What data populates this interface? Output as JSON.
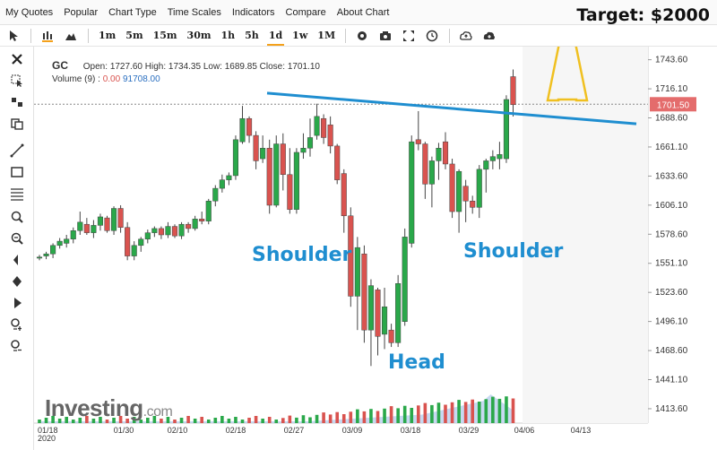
{
  "menu": {
    "items": [
      "My Quotes",
      "Popular",
      "Chart Type",
      "Time Scales",
      "Indicators",
      "Compare",
      "About Chart"
    ]
  },
  "target_label": "Target: $2000",
  "toolbar": {
    "timeframes": [
      "1m",
      "5m",
      "15m",
      "30m",
      "1h",
      "5h",
      "1d",
      "1w",
      "1M"
    ],
    "active_timeframe": "1d"
  },
  "legend": {
    "symbol": "GC",
    "open_label": "Open:",
    "open": "1727.60",
    "high_label": "High:",
    "high": "1734.35",
    "low_label": "Low:",
    "low": "1689.85",
    "close_label": "Close:",
    "close": "1701.10",
    "volume_label": "Volume",
    "volume_period": "(9)",
    "volume_a": "0.00",
    "volume_b": "91708.00"
  },
  "annotations": {
    "left_shoulder": "Shoulder",
    "head": "Head",
    "right_shoulder": "Shoulder"
  },
  "watermark": {
    "brand": "Investing",
    "suffix": ".com"
  },
  "colors": {
    "up": "#2aa84a",
    "down": "#d9534f",
    "neckline": "#1f8ed0",
    "arrow": "#f0c020",
    "price_tag": "#e46c6c",
    "volume_area": "#b9cfee"
  },
  "chart_data": {
    "type": "candlestick",
    "symbol": "GC",
    "ylim": [
      1400,
      1756
    ],
    "y_ticks": [
      1413.6,
      1441.1,
      1468.6,
      1496.1,
      1523.6,
      1551.1,
      1578.6,
      1606.1,
      1633.6,
      1661.1,
      1688.6,
      1716.1,
      1743.6
    ],
    "x_tick_labels": [
      "01/18\n2020",
      "01/30",
      "02/10",
      "02/18",
      "02/27",
      "03/09",
      "03/18",
      "03/29",
      "04/06",
      "04/13"
    ],
    "last_price": 1701.5,
    "candles": [
      {
        "o": 1556,
        "h": 1559,
        "l": 1554,
        "c": 1557
      },
      {
        "o": 1558,
        "h": 1562,
        "l": 1555,
        "c": 1560
      },
      {
        "o": 1560,
        "h": 1570,
        "l": 1556,
        "c": 1568
      },
      {
        "o": 1568,
        "h": 1575,
        "l": 1565,
        "c": 1572
      },
      {
        "o": 1570,
        "h": 1578,
        "l": 1566,
        "c": 1574
      },
      {
        "o": 1574,
        "h": 1585,
        "l": 1570,
        "c": 1582
      },
      {
        "o": 1582,
        "h": 1600,
        "l": 1578,
        "c": 1590
      },
      {
        "o": 1588,
        "h": 1594,
        "l": 1578,
        "c": 1580
      },
      {
        "o": 1580,
        "h": 1592,
        "l": 1575,
        "c": 1587
      },
      {
        "o": 1587,
        "h": 1598,
        "l": 1582,
        "c": 1595
      },
      {
        "o": 1594,
        "h": 1596,
        "l": 1580,
        "c": 1582
      },
      {
        "o": 1582,
        "h": 1605,
        "l": 1578,
        "c": 1603
      },
      {
        "o": 1603,
        "h": 1606,
        "l": 1580,
        "c": 1585
      },
      {
        "o": 1585,
        "h": 1590,
        "l": 1554,
        "c": 1558
      },
      {
        "o": 1558,
        "h": 1572,
        "l": 1554,
        "c": 1568
      },
      {
        "o": 1568,
        "h": 1576,
        "l": 1562,
        "c": 1574
      },
      {
        "o": 1574,
        "h": 1583,
        "l": 1570,
        "c": 1580
      },
      {
        "o": 1580,
        "h": 1586,
        "l": 1576,
        "c": 1584
      },
      {
        "o": 1584,
        "h": 1586,
        "l": 1574,
        "c": 1578
      },
      {
        "o": 1578,
        "h": 1590,
        "l": 1575,
        "c": 1586
      },
      {
        "o": 1586,
        "h": 1588,
        "l": 1575,
        "c": 1577
      },
      {
        "o": 1577,
        "h": 1590,
        "l": 1574,
        "c": 1588
      },
      {
        "o": 1588,
        "h": 1590,
        "l": 1580,
        "c": 1584
      },
      {
        "o": 1584,
        "h": 1596,
        "l": 1582,
        "c": 1593
      },
      {
        "o": 1593,
        "h": 1600,
        "l": 1588,
        "c": 1591
      },
      {
        "o": 1591,
        "h": 1612,
        "l": 1588,
        "c": 1610
      },
      {
        "o": 1610,
        "h": 1625,
        "l": 1605,
        "c": 1622
      },
      {
        "o": 1622,
        "h": 1635,
        "l": 1618,
        "c": 1630
      },
      {
        "o": 1630,
        "h": 1637,
        "l": 1625,
        "c": 1634
      },
      {
        "o": 1634,
        "h": 1672,
        "l": 1630,
        "c": 1668
      },
      {
        "o": 1666,
        "h": 1700,
        "l": 1664,
        "c": 1688
      },
      {
        "o": 1688,
        "h": 1690,
        "l": 1665,
        "c": 1672
      },
      {
        "o": 1672,
        "h": 1676,
        "l": 1640,
        "c": 1648
      },
      {
        "o": 1650,
        "h": 1672,
        "l": 1646,
        "c": 1660
      },
      {
        "o": 1660,
        "h": 1668,
        "l": 1598,
        "c": 1606
      },
      {
        "o": 1606,
        "h": 1672,
        "l": 1604,
        "c": 1664
      },
      {
        "o": 1664,
        "h": 1674,
        "l": 1620,
        "c": 1635
      },
      {
        "o": 1635,
        "h": 1660,
        "l": 1598,
        "c": 1602
      },
      {
        "o": 1602,
        "h": 1660,
        "l": 1598,
        "c": 1656
      },
      {
        "o": 1656,
        "h": 1674,
        "l": 1650,
        "c": 1660
      },
      {
        "o": 1660,
        "h": 1688,
        "l": 1652,
        "c": 1670
      },
      {
        "o": 1672,
        "h": 1702,
        "l": 1668,
        "c": 1690
      },
      {
        "o": 1688,
        "h": 1692,
        "l": 1664,
        "c": 1670
      },
      {
        "o": 1682,
        "h": 1690,
        "l": 1655,
        "c": 1662
      },
      {
        "o": 1662,
        "h": 1664,
        "l": 1626,
        "c": 1630
      },
      {
        "o": 1636,
        "h": 1640,
        "l": 1580,
        "c": 1596
      },
      {
        "o": 1596,
        "h": 1604,
        "l": 1510,
        "c": 1520
      },
      {
        "o": 1520,
        "h": 1576,
        "l": 1488,
        "c": 1566
      },
      {
        "o": 1560,
        "h": 1568,
        "l": 1476,
        "c": 1488
      },
      {
        "o": 1488,
        "h": 1536,
        "l": 1454,
        "c": 1530
      },
      {
        "o": 1526,
        "h": 1528,
        "l": 1464,
        "c": 1482
      },
      {
        "o": 1484,
        "h": 1528,
        "l": 1470,
        "c": 1510
      },
      {
        "o": 1488,
        "h": 1494,
        "l": 1472,
        "c": 1476
      },
      {
        "o": 1476,
        "h": 1540,
        "l": 1472,
        "c": 1532
      },
      {
        "o": 1496,
        "h": 1584,
        "l": 1492,
        "c": 1576
      },
      {
        "o": 1570,
        "h": 1672,
        "l": 1566,
        "c": 1666
      },
      {
        "o": 1668,
        "h": 1695,
        "l": 1658,
        "c": 1664
      },
      {
        "o": 1664,
        "h": 1666,
        "l": 1612,
        "c": 1626
      },
      {
        "o": 1626,
        "h": 1652,
        "l": 1604,
        "c": 1648
      },
      {
        "o": 1648,
        "h": 1665,
        "l": 1630,
        "c": 1660
      },
      {
        "o": 1666,
        "h": 1675,
        "l": 1640,
        "c": 1645
      },
      {
        "o": 1645,
        "h": 1650,
        "l": 1594,
        "c": 1600
      },
      {
        "o": 1600,
        "h": 1640,
        "l": 1580,
        "c": 1638
      },
      {
        "o": 1624,
        "h": 1630,
        "l": 1590,
        "c": 1610
      },
      {
        "o": 1610,
        "h": 1615,
        "l": 1598,
        "c": 1604
      },
      {
        "o": 1604,
        "h": 1644,
        "l": 1594,
        "c": 1640
      },
      {
        "o": 1640,
        "h": 1650,
        "l": 1618,
        "c": 1648
      },
      {
        "o": 1648,
        "h": 1658,
        "l": 1640,
        "c": 1652
      },
      {
        "o": 1650,
        "h": 1666,
        "l": 1640,
        "c": 1654
      },
      {
        "o": 1650,
        "h": 1710,
        "l": 1646,
        "c": 1706
      },
      {
        "o": 1727.6,
        "h": 1734.35,
        "l": 1689.85,
        "c": 1701.1
      }
    ],
    "neckline": {
      "from": {
        "x": "01/30-02/10 midpoint",
        "y": 1712
      },
      "to": {
        "x": "beyond 04/13",
        "y": 1683
      }
    },
    "target_arrow": {
      "from_price": 1706,
      "to_price": 1756,
      "label": "Target: $2000"
    }
  }
}
